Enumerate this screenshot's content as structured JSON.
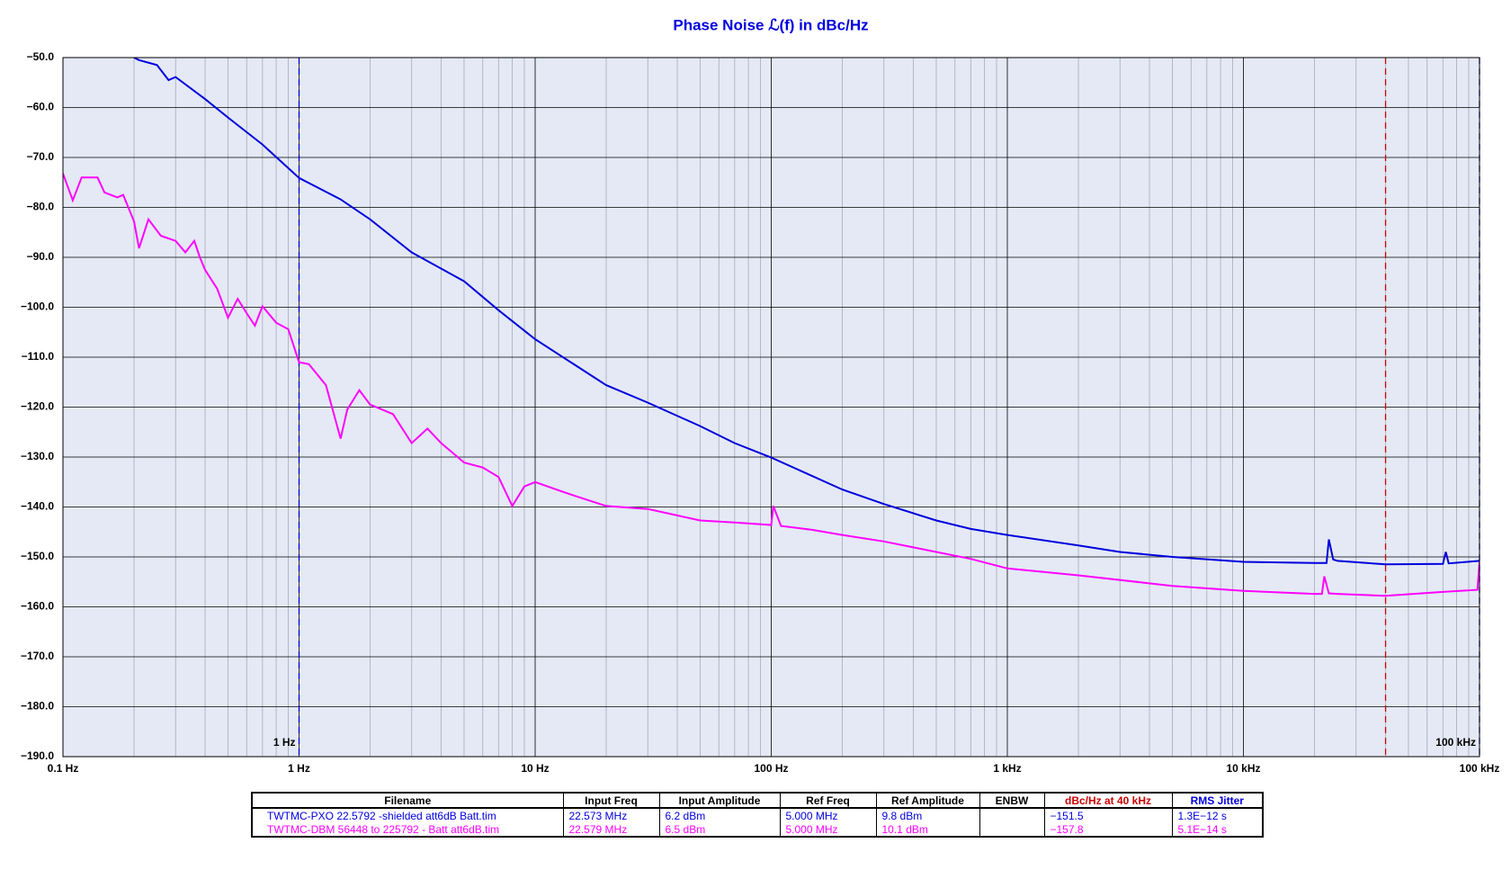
{
  "chart_data": {
    "type": "line",
    "title": "Phase Noise ℒ(f) in dBc/Hz",
    "xscale": "log",
    "grid": true,
    "minor_grid": true,
    "xlim": [
      0.1,
      100000
    ],
    "ylim": [
      -190,
      -50
    ],
    "xticks": [
      {
        "value": 0.1,
        "label": "0.1 Hz"
      },
      {
        "value": 1,
        "label": "1 Hz"
      },
      {
        "value": 10,
        "label": "10 Hz"
      },
      {
        "value": 100,
        "label": "100 Hz"
      },
      {
        "value": 1000,
        "label": "1 kHz"
      },
      {
        "value": 10000,
        "label": "10 kHz"
      },
      {
        "value": 100000,
        "label": "100 kHz"
      }
    ],
    "yticks": [
      {
        "value": -50,
        "label": "−50.0"
      },
      {
        "value": -60,
        "label": "−60.0"
      },
      {
        "value": -70,
        "label": "−70.0"
      },
      {
        "value": -80,
        "label": "−80.0"
      },
      {
        "value": -90,
        "label": "−90.0"
      },
      {
        "value": -100,
        "label": "−100.0"
      },
      {
        "value": -110,
        "label": "−110.0"
      },
      {
        "value": -120,
        "label": "−120.0"
      },
      {
        "value": -130,
        "label": "−130.0"
      },
      {
        "value": -140,
        "label": "−140.0"
      },
      {
        "value": -150,
        "label": "−150.0"
      },
      {
        "value": -160,
        "label": "−160.0"
      },
      {
        "value": -170,
        "label": "−170.0"
      },
      {
        "value": -180,
        "label": "−180.0"
      },
      {
        "value": -190,
        "label": "−190.0"
      }
    ],
    "markers": [
      {
        "x": 1,
        "label": "1 Hz",
        "color": "#0000cc"
      },
      {
        "x": 40000,
        "color": "#cc0000"
      },
      {
        "x": 100000,
        "label": "100 kHz",
        "color": "#0000cc"
      }
    ],
    "series": [
      {
        "color": "#0000dd",
        "x": [
          0.2,
          0.21,
          0.25,
          0.28,
          0.3,
          0.4,
          0.5,
          0.7,
          1,
          1.5,
          2,
          3,
          5,
          7,
          10,
          20,
          30,
          50,
          70,
          100,
          200,
          300,
          500,
          700,
          1000,
          2000,
          3000,
          5000,
          10000,
          20000,
          22500,
          23000,
          24000,
          25000,
          40000,
          70000,
          72000,
          74000,
          100000
        ],
        "values": [
          -50.0,
          -50.5,
          -51.5,
          -54.5,
          -53.9,
          -58.3,
          -62.0,
          -67.4,
          -74.1,
          -78.4,
          -82.4,
          -89.0,
          -94.8,
          -100.6,
          -106.4,
          -115.6,
          -119.1,
          -123.8,
          -127.2,
          -130.1,
          -136.5,
          -139.4,
          -142.7,
          -144.4,
          -145.6,
          -147.7,
          -149.0,
          -150.0,
          -151.0,
          -151.2,
          -151.2,
          -146.5,
          -150.5,
          -150.8,
          -151.5,
          -151.4,
          -149.0,
          -151.3,
          -150.8
        ]
      },
      {
        "color": "#ff00ff",
        "x": [
          0.1,
          0.11,
          0.12,
          0.14,
          0.15,
          0.17,
          0.18,
          0.2,
          0.21,
          0.23,
          0.26,
          0.3,
          0.33,
          0.36,
          0.38,
          0.4,
          0.45,
          0.5,
          0.55,
          0.6,
          0.65,
          0.7,
          0.8,
          0.9,
          1,
          1.1,
          1.3,
          1.5,
          1.6,
          1.8,
          2,
          2.5,
          3,
          3.5,
          4,
          5,
          6,
          7,
          8,
          9,
          10,
          13,
          15,
          20,
          30,
          40,
          50,
          70,
          100,
          102,
          110,
          150,
          200,
          300,
          500,
          700,
          1000,
          2000,
          5000,
          10000,
          20000,
          21500,
          22000,
          23000,
          25000,
          40000,
          70000,
          98000,
          100000
        ],
        "values": [
          -73.2,
          -78.6,
          -74.0,
          -74.0,
          -77.0,
          -78.0,
          -77.5,
          -82.8,
          -88.2,
          -82.4,
          -85.7,
          -86.7,
          -89.0,
          -86.7,
          -90.0,
          -92.5,
          -96.3,
          -102.1,
          -98.3,
          -101.2,
          -103.7,
          -99.8,
          -103.1,
          -104.4,
          -111.0,
          -111.4,
          -115.6,
          -126.3,
          -120.5,
          -116.6,
          -119.5,
          -121.4,
          -127.2,
          -124.3,
          -127.2,
          -131.1,
          -132.1,
          -134.0,
          -139.8,
          -135.9,
          -135.0,
          -136.9,
          -137.9,
          -139.8,
          -140.4,
          -141.7,
          -142.7,
          -143.1,
          -143.6,
          -139.8,
          -143.8,
          -144.6,
          -145.6,
          -146.9,
          -149.0,
          -150.4,
          -152.3,
          -153.7,
          -155.8,
          -156.8,
          -157.4,
          -157.4,
          -153.9,
          -157.3,
          -157.4,
          -157.8,
          -157.0,
          -156.6,
          -151.0
        ]
      }
    ]
  },
  "table": {
    "headers": [
      "Filename",
      "Input Freq",
      "Input Amplitude",
      "Ref Freq",
      "Ref Amplitude",
      "ENBW",
      "dBc/Hz at 40 kHz",
      "RMS Jitter"
    ],
    "rows": [
      [
        "TWTMC-PXO 22.5792 -shielded att6dB Batt.tim",
        "22.573 MHz",
        "6.2 dBm",
        "5.000 MHz",
        "9.8 dBm",
        "",
        "−151.5",
        "1.3E−12 s"
      ],
      [
        "TWTMC-DBM 56448 to 225792 - Batt att6dB.tim",
        "22.579 MHz",
        "6.5 dBm",
        "5.000 MHz",
        "10.1 dBm",
        "",
        "−157.8",
        "5.1E−14 s"
      ]
    ]
  }
}
